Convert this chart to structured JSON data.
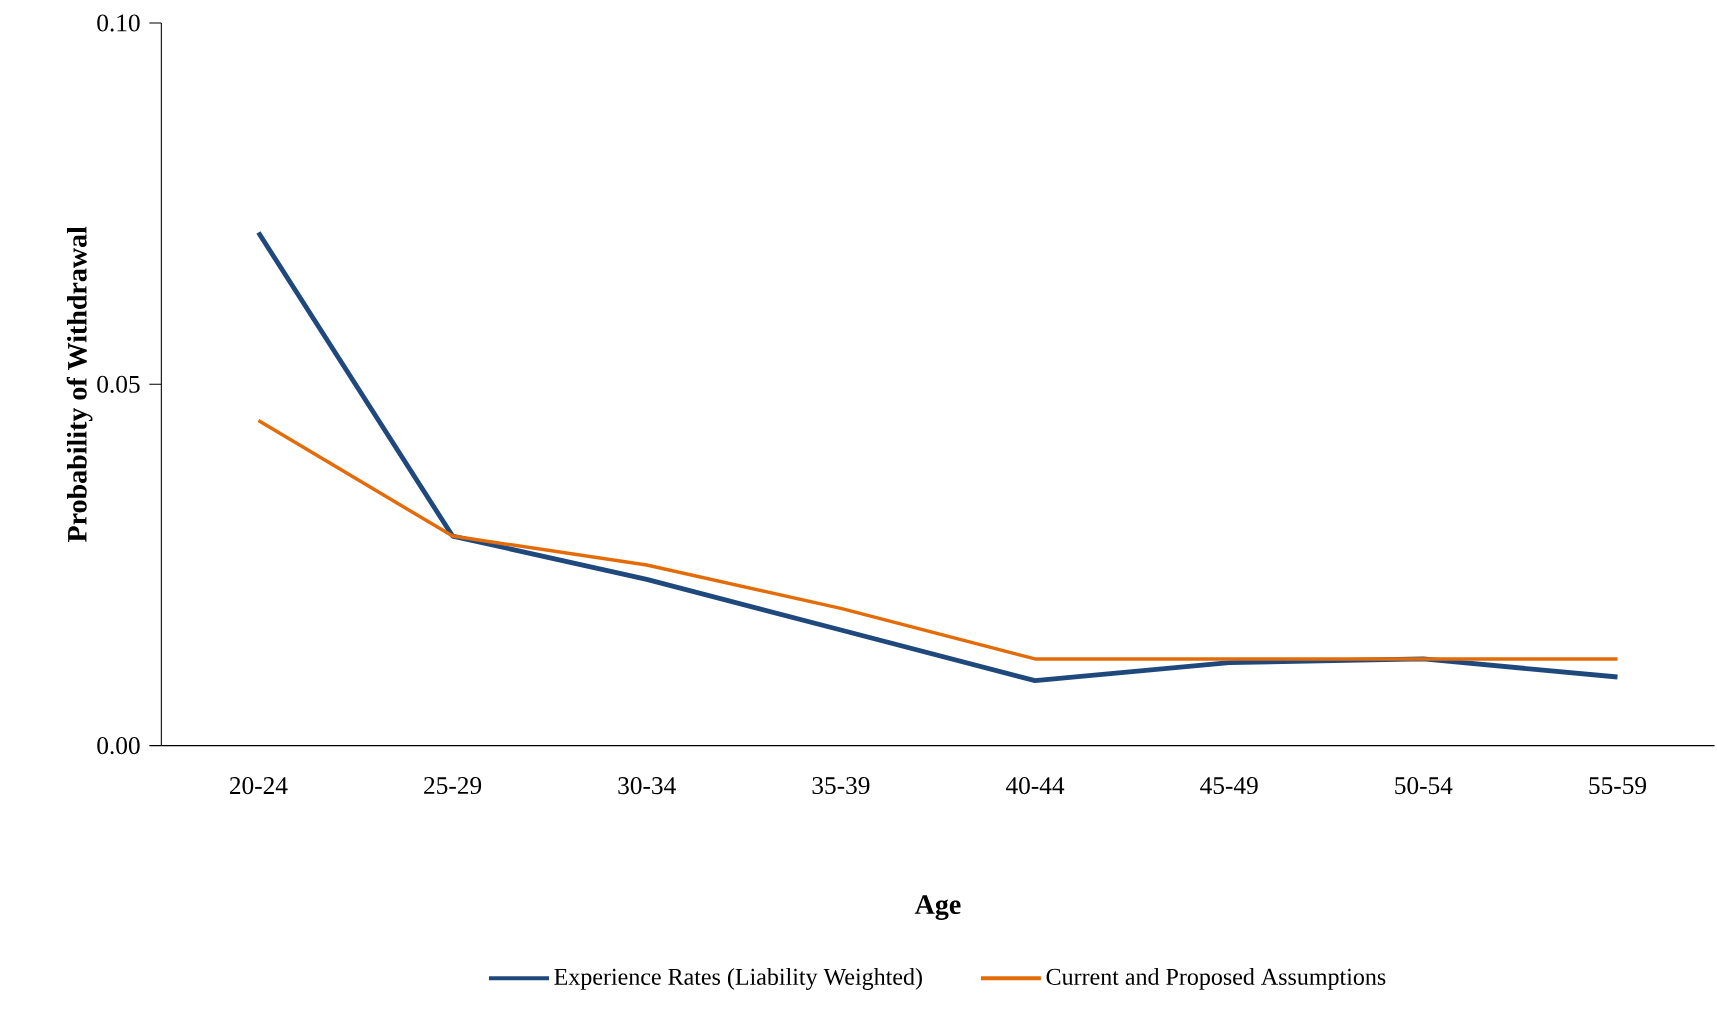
{
  "chart_data": {
    "type": "line",
    "xlabel": "Age",
    "ylabel": "Probability  of Withdrawal",
    "categories": [
      "20-24",
      "25-29",
      "30-34",
      "35-39",
      "40-44",
      "45-49",
      "50-54",
      "55-59"
    ],
    "series": [
      {
        "name": "Experience Rates (Liability Weighted)",
        "color": "#1f497d",
        "values": [
          0.071,
          0.029,
          0.023,
          0.016,
          0.009,
          0.0115,
          0.012,
          0.0095
        ]
      },
      {
        "name": "Current and Proposed Assumptions",
        "color": "#e36c09",
        "values": [
          0.045,
          0.029,
          0.025,
          0.019,
          0.012,
          0.012,
          0.012,
          0.012
        ]
      }
    ],
    "ylim": [
      0,
      0.1
    ],
    "yticks": [
      {
        "value": 0,
        "label": "0.00"
      },
      {
        "value": 0.05,
        "label": "0.05"
      },
      {
        "value": 0.1,
        "label": "0.10"
      }
    ],
    "grid": false,
    "legend": "bottom",
    "marker": "none",
    "line_style": "solid"
  }
}
